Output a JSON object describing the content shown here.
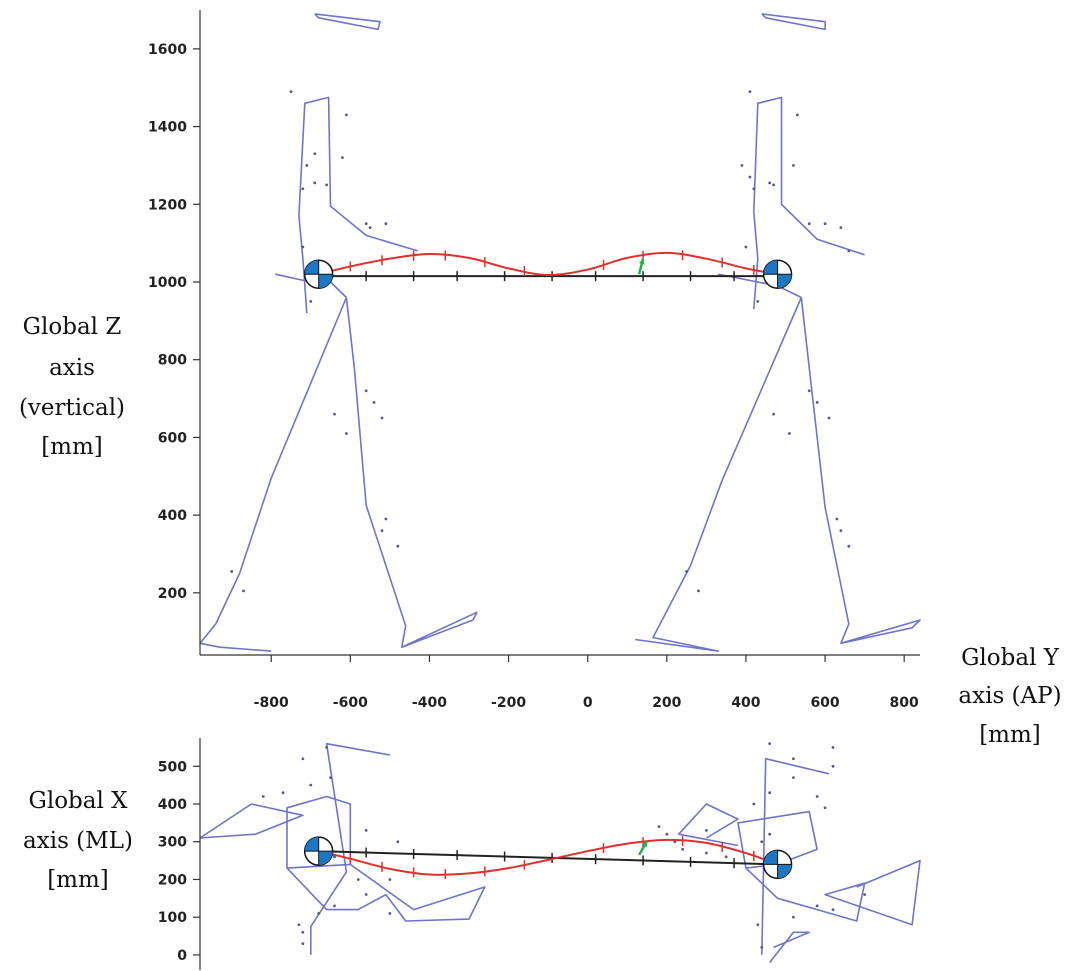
{
  "chart_data": [
    {
      "type": "line",
      "view": "sagittal",
      "ylabel": [
        "Global Z",
        "axis",
        "(vertical)",
        "[mm]"
      ],
      "xlabel": [
        "Global Y",
        "axis (AP)",
        "[mm]"
      ],
      "xlim": [
        -980,
        840
      ],
      "ylim": [
        40,
        1700
      ],
      "xticks": [
        -800,
        -600,
        -400,
        -200,
        0,
        200,
        400,
        600,
        800
      ],
      "yticks": [
        200,
        400,
        600,
        800,
        1000,
        1200,
        1400,
        1600
      ],
      "colors": {
        "skeleton": "#6f74c8",
        "spline": "#e0302b",
        "bar": "#222222",
        "force": "#22b04a",
        "joint": "#1f77c4"
      },
      "joint_centers": [
        [
          -680,
          1020
        ],
        [
          480,
          1020
        ]
      ],
      "bar": {
        "from": [
          -680,
          1015
        ],
        "to": [
          480,
          1015
        ],
        "ticks": [
          -560,
          -440,
          -330,
          -210,
          -90,
          20,
          140,
          260,
          370
        ]
      },
      "spline": [
        [
          -680,
          1020
        ],
        [
          -600,
          1040
        ],
        [
          -500,
          1060
        ],
        [
          -400,
          1072
        ],
        [
          -300,
          1062
        ],
        [
          -200,
          1035
        ],
        [
          -100,
          1018
        ],
        [
          0,
          1032
        ],
        [
          100,
          1062
        ],
        [
          200,
          1075
        ],
        [
          300,
          1060
        ],
        [
          400,
          1035
        ],
        [
          480,
          1020
        ]
      ],
      "spline_ticks": [
        -600,
        -520,
        -440,
        -360,
        -260,
        -160,
        40,
        140,
        240,
        340,
        420
      ],
      "force_vector": [
        [
          130,
          1020
        ],
        [
          140,
          1060
        ]
      ],
      "segments": [
        [
          [
            -730,
            1170
          ],
          [
            -715,
            1460
          ],
          [
            -655,
            1475
          ],
          [
            -650,
            1195
          ],
          [
            -560,
            1120
          ],
          [
            -430,
            1080
          ]
        ],
        [
          [
            -730,
            1170
          ],
          [
            -720,
            1060
          ],
          [
            -710,
            920
          ]
        ],
        [
          [
            -790,
            1020
          ],
          [
            -700,
            1000
          ],
          [
            -650,
            1000
          ],
          [
            -610,
            960
          ]
        ],
        [
          [
            -610,
            960
          ],
          [
            -800,
            495
          ],
          [
            -880,
            250
          ],
          [
            -940,
            120
          ],
          [
            -980,
            70
          ],
          [
            -930,
            60
          ],
          [
            -800,
            50
          ]
        ],
        [
          [
            -610,
            960
          ],
          [
            -590,
            780
          ],
          [
            -560,
            425
          ],
          [
            -460,
            115
          ],
          [
            -470,
            60
          ],
          [
            -280,
            150
          ],
          [
            -290,
            130
          ],
          [
            -470,
            60
          ]
        ],
        [
          [
            -690,
            1690
          ],
          [
            -525,
            1670
          ],
          [
            -530,
            1650
          ],
          [
            -680,
            1680
          ],
          [
            -690,
            1690
          ]
        ],
        [
          [
            420,
            1180
          ],
          [
            430,
            1460
          ],
          [
            490,
            1475
          ],
          [
            490,
            1200
          ],
          [
            580,
            1110
          ],
          [
            700,
            1070
          ]
        ],
        [
          [
            420,
            1180
          ],
          [
            430,
            1060
          ],
          [
            420,
            930
          ]
        ],
        [
          [
            330,
            1020
          ],
          [
            430,
            1000
          ],
          [
            480,
            990
          ],
          [
            540,
            960
          ]
        ],
        [
          [
            540,
            960
          ],
          [
            340,
            490
          ],
          [
            260,
            270
          ],
          [
            165,
            85
          ],
          [
            330,
            50
          ],
          [
            120,
            80
          ]
        ],
        [
          [
            540,
            960
          ],
          [
            560,
            780
          ],
          [
            600,
            420
          ],
          [
            660,
            120
          ],
          [
            640,
            70
          ],
          [
            840,
            130
          ],
          [
            820,
            110
          ],
          [
            640,
            70
          ]
        ],
        [
          [
            440,
            1690
          ],
          [
            600,
            1670
          ],
          [
            600,
            1650
          ],
          [
            450,
            1680
          ],
          [
            440,
            1690
          ]
        ]
      ],
      "markers": [
        [
          -750,
          1490
        ],
        [
          -710,
          1300
        ],
        [
          -690,
          1330
        ],
        [
          -720,
          1240
        ],
        [
          -690,
          1255
        ],
        [
          -660,
          1250
        ],
        [
          -610,
          1430
        ],
        [
          -620,
          1320
        ],
        [
          -560,
          1150
        ],
        [
          -510,
          1150
        ],
        [
          -720,
          1090
        ],
        [
          -670,
          1040
        ],
        [
          -700,
          950
        ],
        [
          -640,
          660
        ],
        [
          -610,
          610
        ],
        [
          -560,
          720
        ],
        [
          -540,
          690
        ],
        [
          -520,
          650
        ],
        [
          -510,
          390
        ],
        [
          -520,
          360
        ],
        [
          -480,
          320
        ],
        [
          -900,
          255
        ],
        [
          -870,
          205
        ],
        [
          -550,
          1140
        ],
        [
          410,
          1490
        ],
        [
          390,
          1300
        ],
        [
          410,
          1270
        ],
        [
          420,
          1240
        ],
        [
          460,
          1255
        ],
        [
          470,
          1250
        ],
        [
          530,
          1430
        ],
        [
          520,
          1300
        ],
        [
          560,
          1150
        ],
        [
          600,
          1150
        ],
        [
          400,
          1090
        ],
        [
          460,
          1040
        ],
        [
          430,
          950
        ],
        [
          470,
          660
        ],
        [
          510,
          610
        ],
        [
          560,
          720
        ],
        [
          580,
          690
        ],
        [
          610,
          650
        ],
        [
          630,
          390
        ],
        [
          640,
          360
        ],
        [
          660,
          320
        ],
        [
          250,
          255
        ],
        [
          280,
          205
        ],
        [
          660,
          1080
        ],
        [
          640,
          1140
        ]
      ]
    },
    {
      "type": "line",
      "view": "transverse",
      "ylabel": [
        "Global X",
        "axis (ML)",
        "[mm]"
      ],
      "xlim": [
        -980,
        840
      ],
      "ylim": [
        575,
        -40
      ],
      "yticks": [
        0,
        100,
        200,
        300,
        400,
        500
      ],
      "colors": {
        "skeleton": "#6f74c8",
        "spline": "#e0302b",
        "bar": "#222222",
        "force": "#22b04a",
        "joint": "#1f77c4"
      },
      "joint_centers": [
        [
          -680,
          275
        ],
        [
          480,
          240
        ]
      ],
      "bar": {
        "from": [
          -680,
          275
        ],
        "to": [
          480,
          240
        ],
        "ticks": [
          -560,
          -440,
          -330,
          -210,
          -90,
          20,
          140,
          260,
          370
        ]
      },
      "spline": [
        [
          -680,
          275
        ],
        [
          -600,
          255
        ],
        [
          -500,
          228
        ],
        [
          -400,
          213
        ],
        [
          -300,
          216
        ],
        [
          -200,
          230
        ],
        [
          -100,
          252
        ],
        [
          0,
          275
        ],
        [
          100,
          295
        ],
        [
          200,
          305
        ],
        [
          300,
          297
        ],
        [
          400,
          270
        ],
        [
          480,
          240
        ]
      ],
      "spline_ticks": [
        -600,
        -520,
        -440,
        -360,
        -260,
        -160,
        40,
        140,
        240,
        340,
        420
      ],
      "force_vector": [
        [
          130,
          265
        ],
        [
          150,
          302
        ]
      ],
      "segments": [
        [
          [
            -700,
            0
          ],
          [
            -700,
            75
          ],
          [
            -610,
            220
          ],
          [
            -660,
            560
          ],
          [
            -500,
            530
          ]
        ],
        [
          [
            -760,
            230
          ],
          [
            -760,
            390
          ],
          [
            -660,
            420
          ],
          [
            -600,
            400
          ],
          [
            -600,
            240
          ],
          [
            -760,
            230
          ]
        ],
        [
          [
            -760,
            230
          ],
          [
            -660,
            120
          ],
          [
            -580,
            120
          ],
          [
            -510,
            160
          ],
          [
            -460,
            90
          ],
          [
            -300,
            95
          ],
          [
            -260,
            180
          ],
          [
            -440,
            120
          ],
          [
            -600,
            240
          ]
        ],
        [
          [
            -980,
            310
          ],
          [
            -850,
            400
          ],
          [
            -720,
            370
          ],
          [
            -840,
            320
          ],
          [
            -980,
            310
          ]
        ],
        [
          [
            440,
            0
          ],
          [
            450,
            520
          ],
          [
            610,
            480
          ]
        ],
        [
          [
            400,
            230
          ],
          [
            380,
            350
          ],
          [
            560,
            380
          ],
          [
            580,
            280
          ],
          [
            480,
            240
          ],
          [
            400,
            230
          ]
        ],
        [
          [
            400,
            230
          ],
          [
            480,
            150
          ],
          [
            580,
            120
          ],
          [
            680,
            90
          ],
          [
            700,
            190
          ],
          [
            600,
            160
          ],
          [
            820,
            80
          ],
          [
            840,
            250
          ],
          [
            680,
            180
          ]
        ],
        [
          [
            300,
            310
          ],
          [
            380,
            360
          ],
          [
            300,
            400
          ],
          [
            230,
            320
          ],
          [
            380,
            290
          ]
        ],
        [
          [
            460,
            -20
          ],
          [
            520,
            60
          ],
          [
            560,
            60
          ],
          [
            470,
            20
          ]
        ]
      ],
      "markers": [
        [
          -720,
          30
        ],
        [
          -730,
          80
        ],
        [
          -680,
          110
        ],
        [
          -640,
          130
        ],
        [
          -560,
          160
        ],
        [
          -500,
          200
        ],
        [
          -820,
          420
        ],
        [
          -770,
          430
        ],
        [
          -700,
          450
        ],
        [
          -650,
          470
        ],
        [
          -720,
          520
        ],
        [
          -660,
          550
        ],
        [
          -480,
          300
        ],
        [
          -560,
          330
        ],
        [
          -580,
          200
        ],
        [
          -640,
          260
        ],
        [
          -720,
          60
        ],
        [
          -500,
          110
        ],
        [
          440,
          20
        ],
        [
          430,
          80
        ],
        [
          520,
          100
        ],
        [
          580,
          130
        ],
        [
          620,
          120
        ],
        [
          700,
          160
        ],
        [
          420,
          400
        ],
        [
          460,
          430
        ],
        [
          520,
          470
        ],
        [
          580,
          420
        ],
        [
          600,
          390
        ],
        [
          350,
          260
        ],
        [
          300,
          270
        ],
        [
          240,
          280
        ],
        [
          220,
          300
        ],
        [
          200,
          320
        ],
        [
          180,
          340
        ],
        [
          300,
          330
        ],
        [
          460,
          560
        ],
        [
          520,
          520
        ],
        [
          620,
          500
        ],
        [
          620,
          550
        ],
        [
          440,
          300
        ],
        [
          460,
          320
        ]
      ]
    }
  ]
}
